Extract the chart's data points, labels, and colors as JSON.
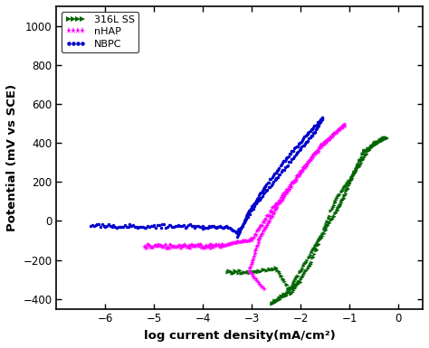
{
  "xlabel": "log current density(mA/cm²)",
  "ylabel": "Potential (mV vs SCE)",
  "xlim": [
    -7,
    0.5
  ],
  "ylim": [
    -450,
    1100
  ],
  "yticks": [
    -400,
    -200,
    0,
    200,
    400,
    600,
    800,
    1000
  ],
  "xticks": [
    -6,
    -5,
    -4,
    -3,
    -2,
    -1,
    0
  ],
  "background_color": "#ffffff",
  "series": [
    {
      "label": "316L SS",
      "color": "#006400",
      "marker": ">",
      "markersize": 3,
      "zorder": 2
    },
    {
      "label": "nHAP",
      "color": "#FF00FF",
      "marker": "*",
      "markersize": 4,
      "zorder": 3
    },
    {
      "label": "NBPC",
      "color": "#0000CC",
      "marker": "o",
      "markersize": 2.5,
      "zorder": 4
    }
  ]
}
